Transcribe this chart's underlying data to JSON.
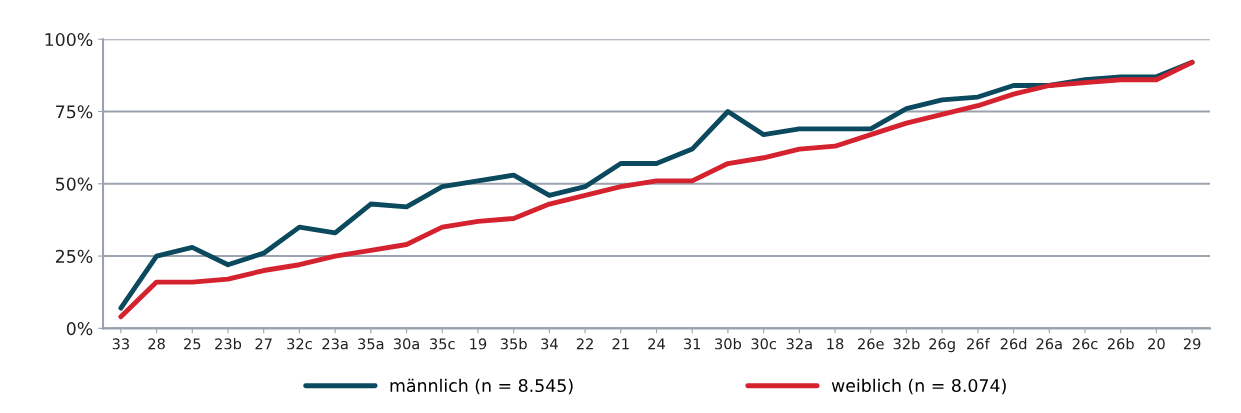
{
  "chart_data": {
    "type": "line",
    "categories": [
      "33",
      "28",
      "25",
      "23b",
      "27",
      "32c",
      "23a",
      "35a",
      "30a",
      "35c",
      "19",
      "35b",
      "34",
      "22",
      "21",
      "24",
      "31",
      "30b",
      "30c",
      "32a",
      "18",
      "26e",
      "32b",
      "26g",
      "26f",
      "26d",
      "26a",
      "26c",
      "26b",
      "20",
      "29"
    ],
    "series": [
      {
        "name": "männlich (n = 8.545)",
        "color": "#0b4a5e",
        "values": [
          7,
          25,
          28,
          22,
          26,
          35,
          33,
          43,
          42,
          49,
          51,
          53,
          46,
          49,
          57,
          57,
          62,
          75,
          67,
          69,
          69,
          69,
          76,
          79,
          80,
          84,
          84,
          86,
          87,
          87,
          92
        ]
      },
      {
        "name": "weiblich (n = 8.074)",
        "color": "#d4232f",
        "values": [
          4,
          16,
          16,
          17,
          20,
          22,
          25,
          27,
          29,
          35,
          37,
          38,
          43,
          46,
          49,
          51,
          51,
          57,
          59,
          62,
          63,
          67,
          71,
          74,
          77,
          81,
          84,
          85,
          86,
          86,
          92
        ]
      }
    ],
    "ylim": [
      0,
      100
    ],
    "yticks": [
      {
        "value": 0,
        "label": "0%"
      },
      {
        "value": 25,
        "label": "25%"
      },
      {
        "value": 50,
        "label": "50%"
      },
      {
        "value": 75,
        "label": "75%"
      },
      {
        "value": 100,
        "label": "100%"
      }
    ],
    "grid": "y",
    "legend": "bottom",
    "marker": "none",
    "line_style": "solid"
  }
}
